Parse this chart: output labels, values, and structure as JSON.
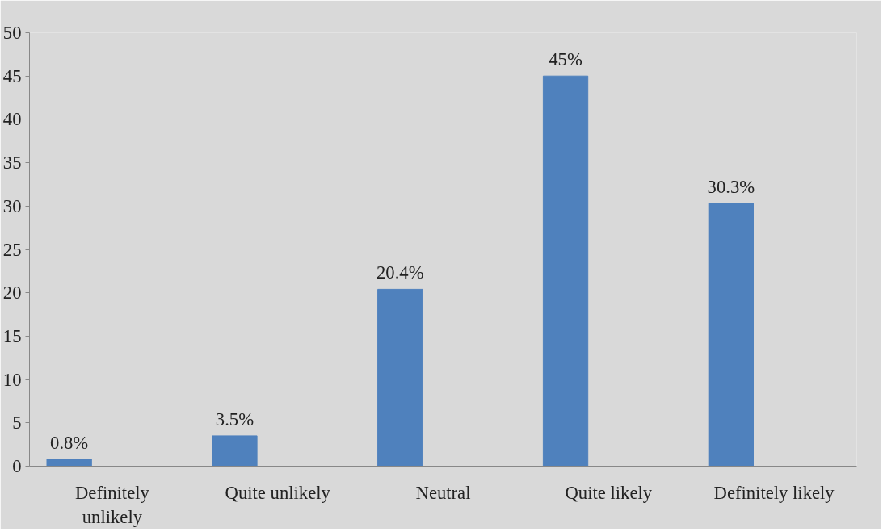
{
  "chart_data": {
    "type": "bar",
    "categories": [
      "Definitely unlikely",
      "Quite unlikely",
      "Neutral",
      "Quite likely",
      "Definitely likely"
    ],
    "values": [
      0.8,
      3.5,
      20.4,
      45,
      30.3
    ],
    "color": "#4f81bd",
    "value_labels": [
      "0.8%",
      "3.5%",
      "20.4%",
      "45%",
      "30.3%"
    ],
    "ylim": [
      0,
      50
    ],
    "yticks": [
      0,
      5,
      10,
      15,
      20,
      25,
      30,
      35,
      40,
      45,
      50
    ],
    "grid": false
  }
}
